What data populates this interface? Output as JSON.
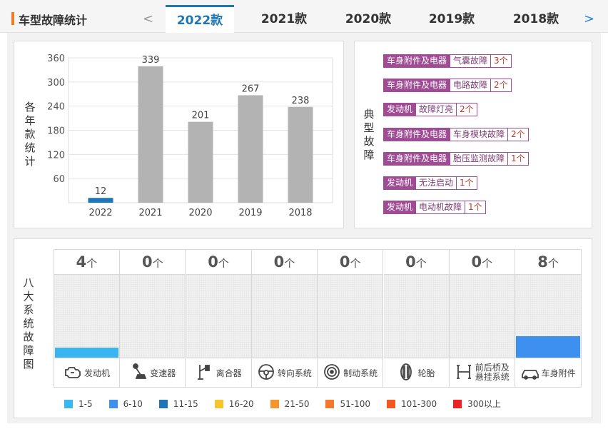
{
  "header": {
    "title": "车型故障统计",
    "prev_arrow": "<",
    "next_arrow": ">",
    "tabs": [
      {
        "label": "2022款",
        "active": true
      },
      {
        "label": "2021款",
        "active": false
      },
      {
        "label": "2020款",
        "active": false
      },
      {
        "label": "2019款",
        "active": false
      },
      {
        "label": "2018款",
        "active": false
      }
    ]
  },
  "yearly_panel": {
    "side_label": [
      "各",
      "年",
      "款",
      "统",
      "计"
    ]
  },
  "chart_data": {
    "type": "bar",
    "title": "各年款统计",
    "categories": [
      "2022",
      "2021",
      "2020",
      "2019",
      "2018"
    ],
    "values": [
      12,
      339,
      201,
      267,
      238
    ],
    "value_labels": [
      "12",
      "339",
      "201",
      "267",
      "238"
    ],
    "ylim": [
      0,
      360
    ],
    "yticks": [
      60,
      120,
      180,
      240,
      300,
      360
    ],
    "ytick_labels": [
      "60",
      "120",
      "180",
      "240",
      "300",
      "360"
    ],
    "highlight_category": "2022",
    "colors": {
      "highlight": "#1f76b6",
      "normal": "#b3b3b3"
    },
    "grid": true
  },
  "faults_panel": {
    "side_label": [
      "典",
      "型",
      "故",
      "障"
    ],
    "items": [
      {
        "category": "车身附件及电器",
        "fault": "气囊故障",
        "count": "3个"
      },
      {
        "category": "车身附件及电器",
        "fault": "电路故障",
        "count": "2个"
      },
      {
        "category": "发动机",
        "fault": "故障灯亮",
        "count": "2个"
      },
      {
        "category": "车身附件及电器",
        "fault": "车身模块故障",
        "count": "2个"
      },
      {
        "category": "车身附件及电器",
        "fault": "胎压监测故障",
        "count": "1个"
      },
      {
        "category": "发动机",
        "fault": "无法启动",
        "count": "1个"
      },
      {
        "category": "发动机",
        "fault": "电动机故障",
        "count": "1个"
      }
    ]
  },
  "systems_panel": {
    "side_label": [
      "八",
      "大",
      "系",
      "统",
      "故",
      "障",
      "图"
    ],
    "unit": "个",
    "systems": [
      {
        "name": "发动机",
        "count": "4",
        "level": 1,
        "icon": "engine-icon"
      },
      {
        "name": "变速器",
        "count": "0",
        "level": 0,
        "icon": "gearshift-icon"
      },
      {
        "name": "离合器",
        "count": "0",
        "level": 0,
        "icon": "clutch-pedal-icon"
      },
      {
        "name": "转向系统",
        "count": "0",
        "level": 0,
        "icon": "steering-wheel-icon"
      },
      {
        "name": "制动系统",
        "count": "0",
        "level": 0,
        "icon": "brake-disc-icon"
      },
      {
        "name": "轮胎",
        "count": "0",
        "level": 0,
        "icon": "tire-icon"
      },
      {
        "name": "前后桥及悬挂系统",
        "name_lines": [
          "前后桥及",
          "悬挂系统"
        ],
        "count": "0",
        "level": 0,
        "icon": "suspension-icon"
      },
      {
        "name": "车身附件",
        "count": "8",
        "level": 2,
        "icon": "car-body-icon"
      }
    ],
    "legend": [
      {
        "label": "1-5",
        "color": "#39b5f1"
      },
      {
        "label": "6-10",
        "color": "#3d8ff0"
      },
      {
        "label": "11-15",
        "color": "#1f76b6"
      },
      {
        "label": "16-20",
        "color": "#f7c42a"
      },
      {
        "label": "21-50",
        "color": "#f5952c"
      },
      {
        "label": "51-100",
        "color": "#f4792a"
      },
      {
        "label": "101-300",
        "color": "#f05a1f"
      },
      {
        "label": "300以上",
        "color": "#ee2222"
      }
    ],
    "level_fraction": {
      "0": 0,
      "1": 0.12,
      "2": 0.26
    }
  }
}
